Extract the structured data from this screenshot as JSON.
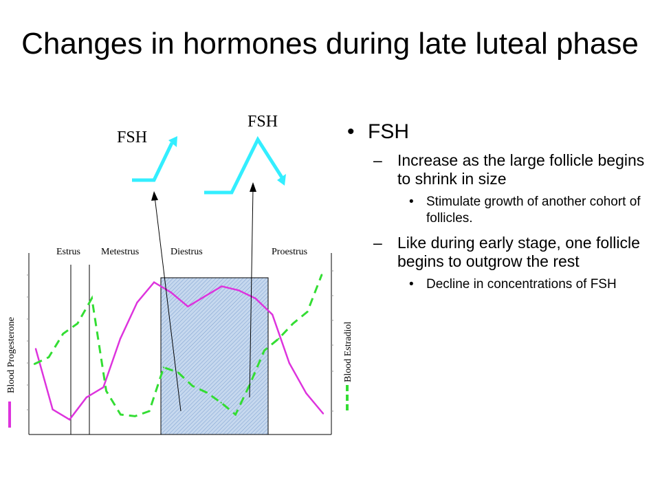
{
  "slide": {
    "title": "Changes in hormones during late luteal phase",
    "fsh_labels": [
      "FSH",
      "FSH"
    ]
  },
  "diagram": {
    "phases": [
      "Estrus",
      "Metestrus",
      "Diestrus",
      "Proestrus"
    ],
    "y_left_label": "Blood Progesterone",
    "y_right_label": "Blood Estradiol",
    "colors": {
      "progesterone": "#dd33dd",
      "estradiol": "#33dd33",
      "fsh": "#33eeff",
      "diestrus_box": "#a8c4e8"
    },
    "progesterone_values": [
      4,
      1,
      0.5,
      1.6,
      2.1,
      4.5,
      6.3,
      7.3,
      6.8,
      6.1,
      6.6,
      7.1,
      6.9,
      6.5,
      5.7,
      3.3,
      1.8,
      0.8
    ],
    "estradiol_values": [
      3.9,
      4.3,
      5.7,
      6.3,
      7.8,
      2.3,
      0.9,
      0.8,
      1.1,
      3.7,
      3.4,
      2.6,
      2.2,
      1.6,
      0.9,
      2.7,
      4.7,
      5.4,
      6.3,
      7.0,
      9.2
    ]
  },
  "bullets": {
    "b1": "FSH",
    "b1_1": "Increase as the large follicle begins to shrink in size",
    "b1_1_1": "Stimulate growth of another cohort of follicles.",
    "b1_2": "Like during early stage, one follicle begins to outgrow the rest",
    "b1_2_1": "Decline in concentrations of FSH"
  }
}
